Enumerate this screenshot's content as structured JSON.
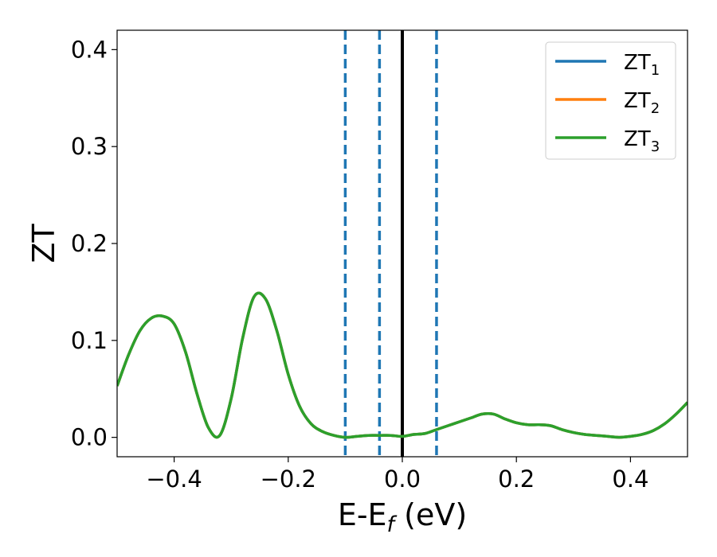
{
  "chart_data": {
    "type": "line",
    "xlabel_main": "E-E",
    "xlabel_sub": "f",
    "xlabel_unit": " (eV)",
    "ylabel": "ZT",
    "xlim": [
      -0.5,
      0.5
    ],
    "ylim": [
      -0.02,
      0.42
    ],
    "x_ticks": [
      -0.4,
      -0.2,
      0.0,
      0.2,
      0.4
    ],
    "x_tick_labels": [
      "−0.4",
      "−0.2",
      "0.0",
      "0.2",
      "0.4"
    ],
    "y_ticks": [
      0.0,
      0.1,
      0.2,
      0.3,
      0.4
    ],
    "y_tick_labels": [
      "0.0",
      "0.1",
      "0.2",
      "0.3",
      "0.4"
    ],
    "grid": false,
    "legend_position": "top-right",
    "vertical_lines": [
      {
        "x": -0.1,
        "style": "dashed",
        "color": "#1f77b4"
      },
      {
        "x": -0.04,
        "style": "dashed",
        "color": "#1f77b4"
      },
      {
        "x": 0.0,
        "style": "solid",
        "color": "#000000"
      },
      {
        "x": 0.06,
        "style": "dashed",
        "color": "#1f77b4"
      }
    ],
    "series": [
      {
        "name": "ZT",
        "name_sub": "1",
        "color": "#1f77b4",
        "x": [
          -0.5,
          -0.48,
          -0.46,
          -0.44,
          -0.42,
          -0.4,
          -0.38,
          -0.36,
          -0.34,
          -0.32,
          -0.3,
          -0.28,
          -0.26,
          -0.24,
          -0.22,
          -0.2,
          -0.18,
          -0.16,
          -0.14,
          -0.12,
          -0.1,
          -0.08,
          -0.06,
          -0.04,
          -0.02,
          0.0,
          0.02,
          0.04,
          0.06,
          0.08,
          0.1,
          0.12,
          0.14,
          0.16,
          0.18,
          0.2,
          0.22,
          0.24,
          0.26,
          0.28,
          0.3,
          0.32,
          0.34,
          0.36,
          0.38,
          0.4,
          0.42,
          0.44,
          0.46,
          0.48,
          0.5
        ],
        "y": [
          0.053,
          0.085,
          0.11,
          0.123,
          0.125,
          0.117,
          0.088,
          0.045,
          0.01,
          0.002,
          0.04,
          0.102,
          0.145,
          0.143,
          0.11,
          0.065,
          0.032,
          0.014,
          0.006,
          0.002,
          0.0,
          0.001,
          0.002,
          0.002,
          0.002,
          0.001,
          0.003,
          0.004,
          0.008,
          0.012,
          0.016,
          0.02,
          0.024,
          0.024,
          0.019,
          0.015,
          0.013,
          0.013,
          0.012,
          0.008,
          0.005,
          0.003,
          0.002,
          0.001,
          0.0,
          0.001,
          0.003,
          0.007,
          0.014,
          0.024,
          0.036
        ]
      },
      {
        "name": "ZT",
        "name_sub": "2",
        "color": "#ff7f0e",
        "x": [
          -0.5,
          -0.48,
          -0.46,
          -0.44,
          -0.42,
          -0.4,
          -0.38,
          -0.36,
          -0.34,
          -0.32,
          -0.3,
          -0.28,
          -0.26,
          -0.24,
          -0.22,
          -0.2,
          -0.18,
          -0.16,
          -0.14,
          -0.12,
          -0.1,
          -0.08,
          -0.06,
          -0.04,
          -0.02,
          0.0,
          0.02,
          0.04,
          0.06,
          0.08,
          0.1,
          0.12,
          0.14,
          0.16,
          0.18,
          0.2,
          0.22,
          0.24,
          0.26,
          0.28,
          0.3,
          0.32,
          0.34,
          0.36,
          0.38,
          0.4,
          0.42,
          0.44,
          0.46,
          0.48,
          0.5
        ],
        "y": [
          0.053,
          0.085,
          0.11,
          0.123,
          0.125,
          0.117,
          0.088,
          0.045,
          0.01,
          0.002,
          0.04,
          0.102,
          0.145,
          0.143,
          0.11,
          0.065,
          0.032,
          0.014,
          0.006,
          0.002,
          0.0,
          0.001,
          0.002,
          0.002,
          0.002,
          0.001,
          0.003,
          0.004,
          0.008,
          0.012,
          0.016,
          0.02,
          0.024,
          0.024,
          0.019,
          0.015,
          0.013,
          0.013,
          0.012,
          0.008,
          0.005,
          0.003,
          0.002,
          0.001,
          0.0,
          0.001,
          0.003,
          0.007,
          0.014,
          0.024,
          0.036
        ]
      },
      {
        "name": "ZT",
        "name_sub": "3",
        "color": "#2ca02c",
        "x": [
          -0.5,
          -0.48,
          -0.46,
          -0.44,
          -0.42,
          -0.4,
          -0.38,
          -0.36,
          -0.34,
          -0.32,
          -0.3,
          -0.28,
          -0.26,
          -0.24,
          -0.22,
          -0.2,
          -0.18,
          -0.16,
          -0.14,
          -0.12,
          -0.1,
          -0.08,
          -0.06,
          -0.04,
          -0.02,
          0.0,
          0.02,
          0.04,
          0.06,
          0.08,
          0.1,
          0.12,
          0.14,
          0.16,
          0.18,
          0.2,
          0.22,
          0.24,
          0.26,
          0.28,
          0.3,
          0.32,
          0.34,
          0.36,
          0.38,
          0.4,
          0.42,
          0.44,
          0.46,
          0.48,
          0.5
        ],
        "y": [
          0.053,
          0.085,
          0.11,
          0.123,
          0.125,
          0.117,
          0.088,
          0.045,
          0.01,
          0.002,
          0.04,
          0.102,
          0.145,
          0.143,
          0.11,
          0.065,
          0.032,
          0.014,
          0.006,
          0.002,
          0.0,
          0.001,
          0.002,
          0.002,
          0.002,
          0.001,
          0.003,
          0.004,
          0.008,
          0.012,
          0.016,
          0.02,
          0.024,
          0.024,
          0.019,
          0.015,
          0.013,
          0.013,
          0.012,
          0.008,
          0.005,
          0.003,
          0.002,
          0.001,
          0.0,
          0.001,
          0.003,
          0.007,
          0.014,
          0.024,
          0.036
        ]
      }
    ]
  }
}
